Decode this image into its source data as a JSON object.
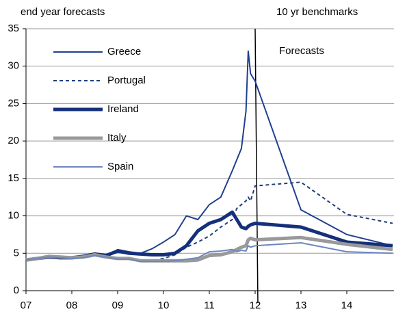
{
  "chart_data": {
    "type": "line",
    "title": "end year forecasts",
    "subtitle": "10 yr benchmarks",
    "annotation": "Forecasts",
    "x": [
      7,
      7.25,
      7.5,
      7.75,
      8,
      8.25,
      8.5,
      8.75,
      9,
      9.25,
      9.5,
      9.75,
      10,
      10.25,
      10.5,
      10.75,
      11,
      11.25,
      11.5,
      11.6,
      11.7,
      11.8,
      11.85,
      11.9,
      12,
      13,
      14,
      15
    ],
    "series": [
      {
        "name": "Greece",
        "color": "#1f3f8f",
        "style": "solid",
        "weight": "thin",
        "values": [
          4.2,
          4.3,
          4.5,
          4.4,
          4.4,
          4.6,
          4.8,
          4.6,
          5.5,
          5.2,
          5.0,
          5.6,
          6.5,
          7.5,
          10.0,
          9.5,
          11.5,
          12.5,
          16.0,
          17.5,
          19.0,
          24.0,
          32.0,
          29.0,
          28.0,
          10.8,
          7.5,
          6.0
        ]
      },
      {
        "name": "Portugal",
        "color": "#1f3f7a",
        "style": "dashed",
        "weight": "thin",
        "values": [
          4.1,
          4.3,
          4.5,
          4.4,
          4.3,
          4.5,
          4.7,
          4.4,
          4.2,
          4.3,
          4.1,
          4.0,
          4.3,
          4.8,
          5.8,
          6.5,
          7.3,
          8.5,
          9.5,
          11.0,
          11.5,
          12.0,
          12.5,
          12.0,
          14.0,
          14.5,
          10.2,
          9.0
        ]
      },
      {
        "name": "Ireland",
        "color": "#15307a",
        "style": "solid",
        "weight": "thick",
        "values": [
          4.1,
          4.3,
          4.5,
          4.4,
          4.4,
          4.6,
          4.9,
          4.7,
          5.3,
          5.0,
          4.9,
          4.8,
          4.8,
          5.0,
          6.0,
          8.0,
          9.0,
          9.5,
          10.5,
          9.5,
          8.5,
          8.3,
          8.6,
          8.8,
          9.0,
          8.5,
          6.5,
          6.0
        ]
      },
      {
        "name": "Italy",
        "color": "#999999",
        "style": "solid",
        "weight": "thick",
        "values": [
          4.1,
          4.3,
          4.6,
          4.5,
          4.4,
          4.5,
          4.8,
          4.5,
          4.3,
          4.3,
          4.0,
          4.0,
          4.0,
          4.0,
          4.0,
          4.1,
          4.7,
          4.8,
          5.2,
          5.5,
          5.8,
          6.0,
          6.8,
          7.0,
          6.8,
          7.1,
          6.2,
          5.5
        ]
      },
      {
        "name": "Spain",
        "color": "#6b86c0",
        "style": "solid",
        "weight": "thin",
        "values": [
          4.1,
          4.3,
          4.5,
          4.4,
          4.3,
          4.4,
          4.7,
          4.5,
          4.2,
          4.2,
          3.9,
          3.9,
          3.9,
          4.0,
          4.2,
          4.4,
          5.2,
          5.3,
          5.5,
          5.2,
          5.4,
          5.3,
          6.0,
          5.8,
          6.0,
          6.4,
          5.2,
          5.0
        ]
      }
    ],
    "xlim": [
      7,
      15
    ],
    "xticks": [
      {
        "value": 7,
        "label": "07"
      },
      {
        "value": 8,
        "label": "08"
      },
      {
        "value": 9,
        "label": "09"
      },
      {
        "value": 10,
        "label": "10"
      },
      {
        "value": 11,
        "label": "11"
      },
      {
        "value": 12,
        "label": "12"
      },
      {
        "value": 13,
        "label": "13"
      },
      {
        "value": 14,
        "label": "14"
      }
    ],
    "ylim": [
      0,
      35
    ],
    "yticks": [
      0,
      5,
      10,
      15,
      20,
      25,
      30,
      35
    ],
    "grid": true,
    "legend": "upper left"
  }
}
